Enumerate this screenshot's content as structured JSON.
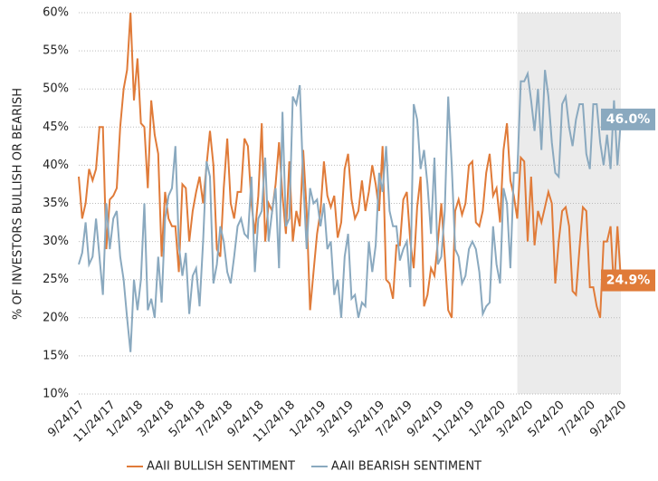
{
  "chart_data": {
    "type": "line",
    "y_label": "% OF INVESTORS BULLISH OR BEARISH",
    "categories": [
      "9/24/17",
      null,
      null,
      null,
      null,
      null,
      null,
      null,
      null,
      "11/24/17",
      null,
      null,
      null,
      null,
      null,
      null,
      null,
      "1/24/18",
      null,
      null,
      null,
      null,
      null,
      null,
      null,
      null,
      "3/24/18",
      null,
      null,
      null,
      null,
      null,
      null,
      null,
      null,
      "5/24/18",
      null,
      null,
      null,
      null,
      null,
      null,
      null,
      "7/24/18",
      null,
      null,
      null,
      null,
      null,
      null,
      null,
      null,
      "9/24/18",
      null,
      null,
      null,
      null,
      null,
      null,
      null,
      null,
      "11/24/18",
      null,
      null,
      null,
      null,
      null,
      null,
      null,
      null,
      "1/24/19",
      null,
      null,
      null,
      null,
      null,
      null,
      null,
      "3/24/19",
      null,
      null,
      null,
      null,
      null,
      null,
      null,
      null,
      "5/24/19",
      null,
      null,
      null,
      null,
      null,
      null,
      null,
      "7/24/19",
      null,
      null,
      null,
      null,
      null,
      null,
      null,
      null,
      "9/24/19",
      null,
      null,
      null,
      null,
      null,
      null,
      null,
      null,
      "11/24/19",
      null,
      null,
      null,
      null,
      null,
      null,
      null,
      null,
      "1/24/20",
      null,
      null,
      null,
      null,
      null,
      null,
      null,
      "3/24/20",
      null,
      null,
      null,
      null,
      null,
      null,
      null,
      null,
      "5/24/20",
      null,
      null,
      null,
      null,
      null,
      null,
      null,
      null,
      "7/24/20",
      null,
      null,
      null,
      null,
      null,
      null,
      null,
      null,
      "9/24/20"
    ],
    "series": [
      {
        "name": "AAII BULLISH SENTIMENT",
        "color": "#e07b39",
        "values": [
          38.5,
          33,
          35,
          39.5,
          38,
          39.5,
          45,
          45,
          29,
          35.5,
          36,
          37,
          45,
          50,
          52.5,
          60,
          48.5,
          54,
          45.5,
          45,
          37,
          48.5,
          44,
          41.5,
          28,
          36.5,
          33,
          32,
          32,
          26,
          37.5,
          37,
          30,
          34,
          36.5,
          38.5,
          35,
          40,
          44.5,
          40,
          29,
          28,
          37,
          43.5,
          35,
          33,
          36.5,
          36.5,
          43.5,
          42.5,
          35,
          31,
          36,
          45.5,
          30,
          35,
          34,
          37.5,
          43,
          36,
          31,
          40.5,
          30,
          34,
          32,
          42,
          34,
          21,
          26,
          31,
          34,
          40.5,
          36,
          34.5,
          36,
          30.5,
          32.5,
          39.5,
          41.5,
          35.5,
          33,
          34,
          38,
          34,
          36.5,
          40,
          37.5,
          34,
          42.5,
          25,
          24.5,
          22.5,
          29.5,
          29.5,
          35.5,
          36.5,
          30,
          26.5,
          34.5,
          38.5,
          21.5,
          23,
          26.5,
          25.5,
          30,
          35,
          28,
          21,
          20,
          34,
          35.5,
          33.5,
          35,
          40,
          40.5,
          32.5,
          32,
          34,
          39,
          41.5,
          36,
          37,
          32.5,
          42,
          45.5,
          38,
          36,
          33,
          41,
          40.5,
          30,
          38.5,
          29.5,
          34,
          32.5,
          34.5,
          36.5,
          35,
          24.5,
          30,
          34,
          34.5,
          32,
          23.5,
          23,
          29,
          34.5,
          34,
          24,
          24,
          21.5,
          20,
          30,
          30,
          32,
          23.5,
          32,
          24.9
        ]
      },
      {
        "name": "AAII BEARISH SENTIMENT",
        "color": "#8aa9bf",
        "values": [
          27,
          28.5,
          32.5,
          27,
          28,
          33,
          28,
          23,
          35,
          29,
          33,
          34,
          28,
          25,
          20,
          15.5,
          25,
          21,
          25,
          35,
          21,
          22.5,
          20,
          28,
          22,
          33,
          36,
          37,
          42.5,
          29.5,
          25.5,
          28.5,
          20.5,
          25.5,
          26.5,
          21.5,
          30,
          40.5,
          38.5,
          24.5,
          27,
          32,
          30,
          26,
          24.5,
          28,
          32,
          33,
          31,
          30.5,
          38.5,
          26,
          33,
          34,
          41,
          30,
          34,
          37,
          26.5,
          47,
          32,
          33,
          49,
          48,
          50.5,
          38,
          29,
          37,
          35,
          35.5,
          32,
          35,
          29,
          30,
          23,
          25,
          20,
          28,
          31,
          22.5,
          23,
          20,
          22,
          21.5,
          30,
          26,
          29.5,
          39,
          36.5,
          42.5,
          34,
          32,
          32,
          27.5,
          29,
          30,
          24,
          48,
          46,
          39.5,
          42,
          37.5,
          31,
          41,
          27,
          28,
          34,
          49,
          40,
          29,
          28,
          24.5,
          25.5,
          29,
          30,
          29,
          26,
          20.5,
          21.5,
          22,
          32,
          27,
          24.5,
          37,
          35,
          26.5,
          39,
          39,
          51,
          51,
          52,
          48.5,
          44.5,
          50,
          42,
          52.5,
          49,
          43,
          39,
          38.5,
          48,
          49,
          45,
          42.5,
          46,
          48,
          48,
          41.5,
          39.5,
          48,
          48,
          43,
          40,
          44,
          39.5,
          48.5,
          40,
          46
        ]
      }
    ],
    "annotations": [
      {
        "text": "46.0%",
        "value": 46.0,
        "color": "#8aa9bf"
      },
      {
        "text": "24.9%",
        "value": 24.9,
        "color": "#e07b39"
      }
    ],
    "shade_start": 127,
    "ylim": [
      10,
      60
    ],
    "yticks": [
      {
        "value": 10,
        "label": "10%"
      },
      {
        "value": 15,
        "label": "15%"
      },
      {
        "value": 20,
        "label": "20%"
      },
      {
        "value": 25,
        "label": "25%"
      },
      {
        "value": 30,
        "label": "30%"
      },
      {
        "value": 35,
        "label": "35%"
      },
      {
        "value": 40,
        "label": "40%"
      },
      {
        "value": 45,
        "label": "45%"
      },
      {
        "value": 50,
        "label": "50%"
      },
      {
        "value": 55,
        "label": "55%"
      },
      {
        "value": 60,
        "label": "60%"
      }
    ],
    "grid": true
  }
}
